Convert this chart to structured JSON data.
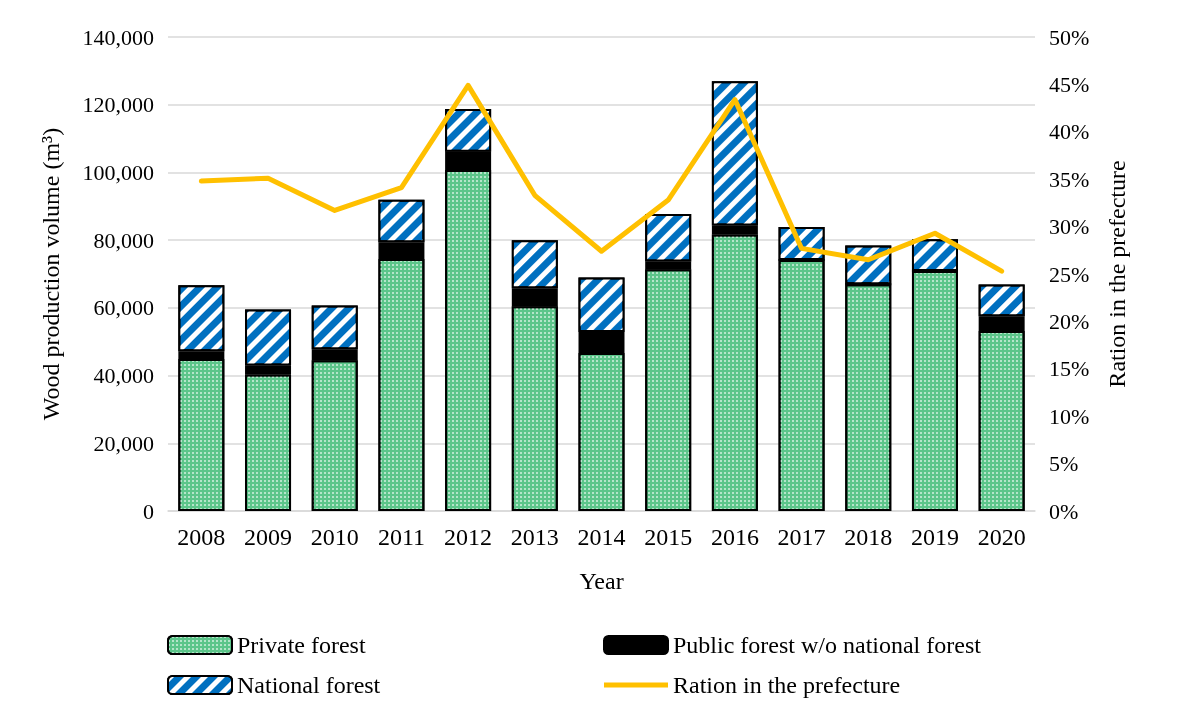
{
  "chart_data": {
    "type": "bar",
    "stacked": true,
    "xlabel": "Year",
    "ylabel": "Wood production volume (m³)",
    "y2label": "Ration in the prefecture",
    "categories": [
      "2008",
      "2009",
      "2010",
      "2011",
      "2012",
      "2013",
      "2014",
      "2015",
      "2016",
      "2017",
      "2018",
      "2019",
      "2020"
    ],
    "series": [
      {
        "name": "Private forest",
        "color": "#5cc58a",
        "values": [
          44900,
          40300,
          44500,
          74400,
          100700,
          60500,
          46700,
          71400,
          81700,
          74100,
          67000,
          70900,
          53200
        ]
      },
      {
        "name": "Public forest w/o national forest",
        "color": "#000000",
        "values": [
          2300,
          2700,
          3300,
          5000,
          5400,
          5300,
          6200,
          2300,
          2600,
          0,
          0,
          0,
          4300
        ]
      },
      {
        "name": "National forest",
        "color": "#0070c0",
        "values": [
          19500,
          16500,
          12900,
          12500,
          12600,
          14200,
          16100,
          14000,
          42600,
          9800,
          11400,
          9400,
          9400
        ]
      },
      {
        "name": "Ration in the prefecture",
        "type": "line",
        "axis": "y2",
        "color": "#ffc000",
        "values": [
          34.8,
          35.1,
          31.7,
          34.1,
          44.9,
          33.3,
          27.4,
          32.8,
          43.4,
          27.7,
          26.5,
          29.3,
          25.3
        ]
      }
    ],
    "ylim": [
      0,
      140000
    ],
    "yticks": [
      {
        "value": 0,
        "label": "0"
      },
      {
        "value": 20000,
        "label": "20,000"
      },
      {
        "value": 40000,
        "label": "40,000"
      },
      {
        "value": 60000,
        "label": "60,000"
      },
      {
        "value": 80000,
        "label": "80,000"
      },
      {
        "value": 100000,
        "label": "100,000"
      },
      {
        "value": 120000,
        "label": "120,000"
      },
      {
        "value": 140000,
        "label": "140,000"
      }
    ],
    "y2lim": [
      0,
      50
    ],
    "y2ticks": [
      {
        "value": 0,
        "label": "0%"
      },
      {
        "value": 5,
        "label": "5%"
      },
      {
        "value": 10,
        "label": "10%"
      },
      {
        "value": 15,
        "label": "15%"
      },
      {
        "value": 20,
        "label": "20%"
      },
      {
        "value": 25,
        "label": "25%"
      },
      {
        "value": 30,
        "label": "30%"
      },
      {
        "value": 35,
        "label": "35%"
      },
      {
        "value": 40,
        "label": "40%"
      },
      {
        "value": 45,
        "label": "45%"
      },
      {
        "value": 50,
        "label": "50%"
      }
    ],
    "grid": "y",
    "legend": "bottom",
    "marker": "none",
    "line_style": "solid"
  }
}
